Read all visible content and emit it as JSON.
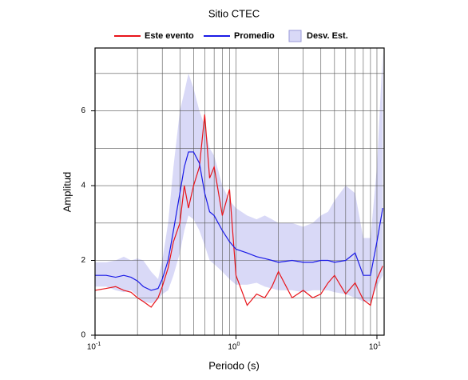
{
  "chart_data": {
    "type": "band-line",
    "title": "Sitio CTEC",
    "xlabel": "Periodo (s)",
    "ylabel": "Amplitud",
    "xscale": "log",
    "x": [
      0.1,
      0.12,
      0.14,
      0.16,
      0.18,
      0.2,
      0.22,
      0.25,
      0.28,
      0.3,
      0.33,
      0.36,
      0.4,
      0.43,
      0.46,
      0.5,
      0.55,
      0.6,
      0.65,
      0.7,
      0.8,
      0.9,
      1,
      1.2,
      1.4,
      1.6,
      1.8,
      2,
      2.5,
      3,
      3.5,
      4,
      4.5,
      5,
      6,
      7,
      8,
      9,
      10,
      11
    ],
    "series": [
      {
        "name": "Este evento",
        "color": "#e8141a",
        "kind": "line",
        "values": [
          1.2,
          1.25,
          1.3,
          1.2,
          1.15,
          1.0,
          0.9,
          0.75,
          1.0,
          1.3,
          1.8,
          2.5,
          3.0,
          4.0,
          3.4,
          4.0,
          4.5,
          5.9,
          4.2,
          4.5,
          3.2,
          3.9,
          1.6,
          0.8,
          1.1,
          1.0,
          1.3,
          1.7,
          1.0,
          1.2,
          1.0,
          1.1,
          1.4,
          1.6,
          1.1,
          1.4,
          0.95,
          0.8,
          1.5,
          1.85
        ]
      },
      {
        "name": "Promedio",
        "color": "#1a1ae6",
        "kind": "line",
        "values": [
          1.6,
          1.6,
          1.55,
          1.6,
          1.55,
          1.45,
          1.3,
          1.2,
          1.25,
          1.5,
          2.0,
          2.8,
          3.8,
          4.5,
          4.9,
          4.9,
          4.6,
          3.8,
          3.3,
          3.2,
          2.8,
          2.5,
          2.3,
          2.2,
          2.1,
          2.05,
          2.0,
          1.95,
          2.0,
          1.95,
          1.95,
          2.0,
          2.0,
          1.95,
          2.0,
          2.2,
          1.6,
          1.6,
          2.5,
          3.4
        ]
      },
      {
        "name": "Desv. Est.",
        "color": "#d9d9f7",
        "kind": "band",
        "upper": [
          1.95,
          1.95,
          2.0,
          2.1,
          2.0,
          2.05,
          2.0,
          1.7,
          1.5,
          2.0,
          3.0,
          4.5,
          6.0,
          6.5,
          7.0,
          6.6,
          6.0,
          5.6,
          5.0,
          4.8,
          4.0,
          3.6,
          3.4,
          3.2,
          3.1,
          3.2,
          3.1,
          3.0,
          3.0,
          2.9,
          3.0,
          3.2,
          3.3,
          3.6,
          4.0,
          3.8,
          2.6,
          2.6,
          4.5,
          7.6
        ],
        "lower": [
          1.3,
          1.3,
          1.2,
          1.15,
          1.2,
          1.05,
          0.9,
          0.85,
          0.95,
          1.1,
          1.2,
          1.6,
          2.2,
          2.8,
          3.2,
          3.1,
          2.8,
          2.4,
          2.0,
          1.9,
          1.7,
          1.5,
          1.35,
          1.35,
          1.4,
          1.3,
          1.25,
          1.2,
          1.2,
          1.15,
          1.2,
          1.2,
          1.2,
          1.15,
          1.1,
          1.0,
          0.9,
          0.9,
          1.3,
          1.6
        ]
      }
    ],
    "xlim": [
      0.1,
      11.25
    ],
    "xticks": [
      {
        "value": 0.1,
        "label": "10",
        "exponent": "-1"
      },
      {
        "value": 1,
        "label": "10",
        "exponent": "0"
      },
      {
        "value": 10,
        "label": "10",
        "exponent": "1"
      }
    ],
    "xgrid": [
      0.2,
      0.3,
      0.4,
      0.5,
      0.6,
      0.7,
      0.8,
      0.9,
      1,
      2,
      3,
      4,
      5,
      6,
      7,
      8,
      9,
      10
    ],
    "ylim": [
      0,
      7.68
    ],
    "yticks": [
      0,
      2,
      4,
      6
    ],
    "ygrid": [
      1,
      2,
      3,
      4,
      5,
      6,
      7
    ],
    "grid": true,
    "legend": "top"
  }
}
